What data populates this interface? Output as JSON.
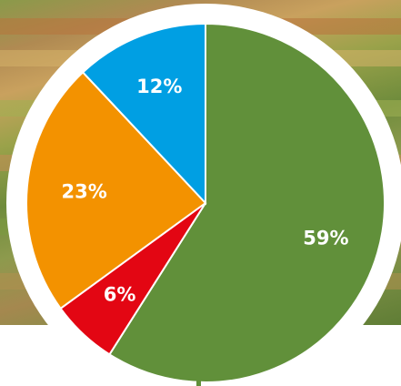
{
  "chart_data": {
    "type": "pie",
    "title": "",
    "slices": [
      {
        "label": "59%",
        "value": 59,
        "color": "#61903a"
      },
      {
        "label": "6%",
        "value": 6,
        "color": "#e30613"
      },
      {
        "label": "23%",
        "value": 23,
        "color": "#f39200"
      },
      {
        "label": "12%",
        "value": 12,
        "color": "#009fe3"
      }
    ],
    "start_angle_deg": 0,
    "direction": "clockwise"
  },
  "colors": {
    "ring": "#ffffff",
    "slice_border": "#ffffff"
  }
}
